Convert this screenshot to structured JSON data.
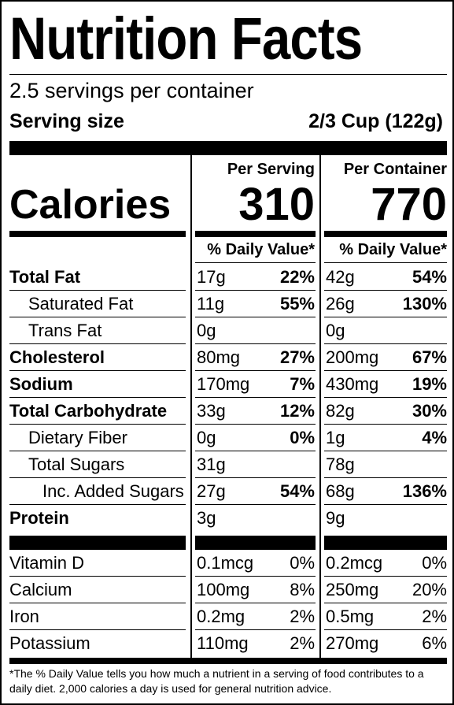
{
  "title": "Nutrition Facts",
  "servings_per_container": "2.5 servings per container",
  "serving_size_label": "Serving size",
  "serving_size_value": "2/3 Cup (122g)",
  "columns": {
    "per_serving": "Per Serving",
    "per_container": "Per Container"
  },
  "calories": {
    "label": "Calories",
    "per_serving": "310",
    "per_container": "770"
  },
  "daily_value_header": "% Daily Value*",
  "nutrients": [
    {
      "name": "Total Fat",
      "bold": true,
      "indent": 0,
      "serving_amount": "17g",
      "serving_dv": "22%",
      "container_amount": "42g",
      "container_dv": "54%"
    },
    {
      "name": "Saturated Fat",
      "bold": false,
      "indent": 1,
      "serving_amount": "11g",
      "serving_dv": "55%",
      "container_amount": "26g",
      "container_dv": "130%"
    },
    {
      "name": "Trans Fat",
      "bold": false,
      "indent": 1,
      "serving_amount": "0g",
      "serving_dv": "",
      "container_amount": "0g",
      "container_dv": ""
    },
    {
      "name": "Cholesterol",
      "bold": true,
      "indent": 0,
      "serving_amount": "80mg",
      "serving_dv": "27%",
      "container_amount": "200mg",
      "container_dv": "67%"
    },
    {
      "name": "Sodium",
      "bold": true,
      "indent": 0,
      "serving_amount": "170mg",
      "serving_dv": "7%",
      "container_amount": "430mg",
      "container_dv": "19%"
    },
    {
      "name": "Total Carbohydrate",
      "bold": true,
      "indent": 0,
      "serving_amount": "33g",
      "serving_dv": "12%",
      "container_amount": "82g",
      "container_dv": "30%"
    },
    {
      "name": "Dietary Fiber",
      "bold": false,
      "indent": 1,
      "serving_amount": "0g",
      "serving_dv": "0%",
      "container_amount": "1g",
      "container_dv": "4%"
    },
    {
      "name": "Total Sugars",
      "bold": false,
      "indent": 1,
      "serving_amount": "31g",
      "serving_dv": "",
      "container_amount": "78g",
      "container_dv": ""
    },
    {
      "name": "Inc. Added Sugars",
      "bold": false,
      "indent": 2,
      "serving_amount": "27g",
      "serving_dv": "54%",
      "container_amount": "68g",
      "container_dv": "136%"
    },
    {
      "name": "Protein",
      "bold": true,
      "indent": 0,
      "serving_amount": "3g",
      "serving_dv": "",
      "container_amount": "9g",
      "container_dv": ""
    }
  ],
  "vitamins": [
    {
      "name": "Vitamin D",
      "serving_amount": "0.1mcg",
      "serving_dv": "0%",
      "container_amount": "0.2mcg",
      "container_dv": "0%"
    },
    {
      "name": "Calcium",
      "serving_amount": "100mg",
      "serving_dv": "8%",
      "container_amount": "250mg",
      "container_dv": "20%"
    },
    {
      "name": "Iron",
      "serving_amount": "0.2mg",
      "serving_dv": "2%",
      "container_amount": "0.5mg",
      "container_dv": "2%"
    },
    {
      "name": "Potassium",
      "serving_amount": "110mg",
      "serving_dv": "2%",
      "container_amount": "270mg",
      "container_dv": "6%"
    }
  ],
  "footnote": "*The % Daily Value tells you how much a nutrient in a serving of food contributes to a daily diet. 2,000 calories a day is used for general nutrition advice."
}
